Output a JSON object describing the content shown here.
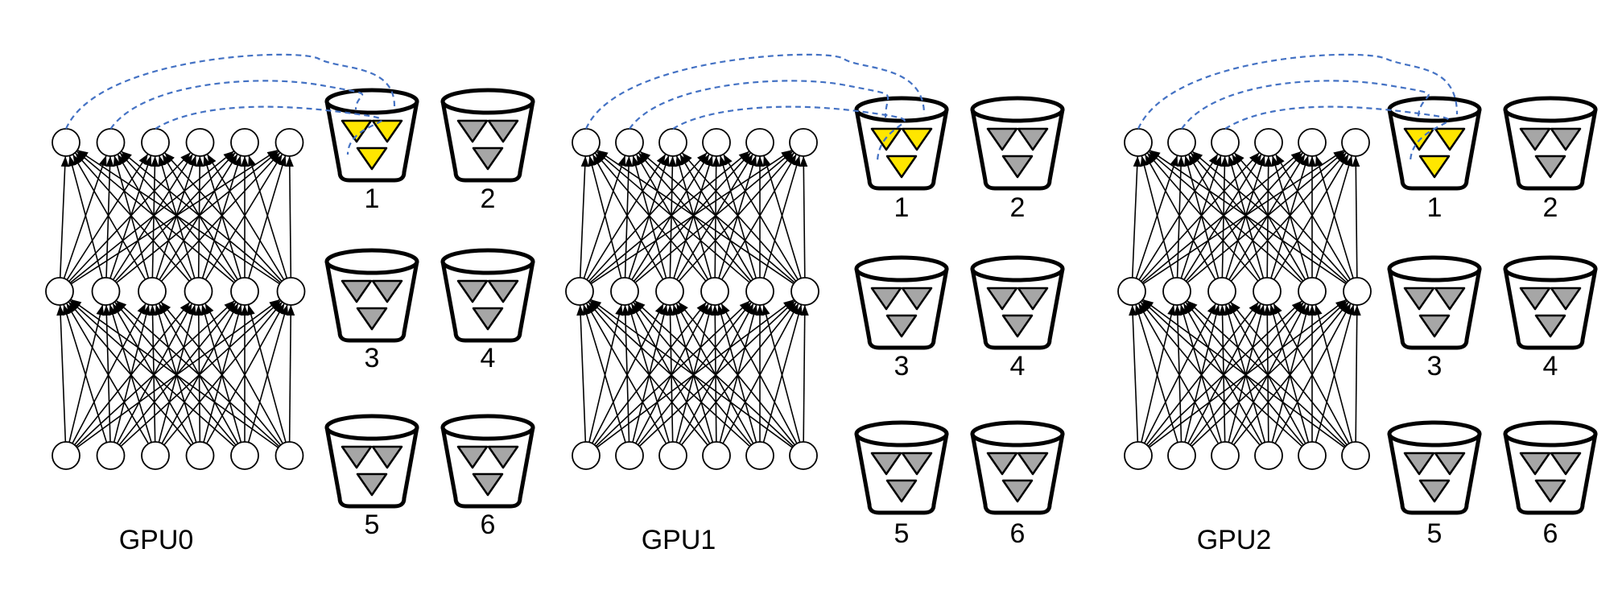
{
  "panels": [
    {
      "label": "GPU0",
      "highlighted_bucket": "1",
      "buckets": [
        {
          "label": "1",
          "highlighted": true
        },
        {
          "label": "2",
          "highlighted": false
        },
        {
          "label": "3",
          "highlighted": false
        },
        {
          "label": "4",
          "highlighted": false
        },
        {
          "label": "5",
          "highlighted": false
        },
        {
          "label": "6",
          "highlighted": false
        }
      ]
    },
    {
      "label": "GPU1",
      "highlighted_bucket": "1",
      "buckets": [
        {
          "label": "1",
          "highlighted": true
        },
        {
          "label": "2",
          "highlighted": false
        },
        {
          "label": "3",
          "highlighted": false
        },
        {
          "label": "4",
          "highlighted": false
        },
        {
          "label": "5",
          "highlighted": false
        },
        {
          "label": "6",
          "highlighted": false
        }
      ]
    },
    {
      "label": "GPU2",
      "highlighted_bucket": "1",
      "buckets": [
        {
          "label": "1",
          "highlighted": true
        },
        {
          "label": "2",
          "highlighted": false
        },
        {
          "label": "3",
          "highlighted": false
        },
        {
          "label": "4",
          "highlighted": false
        },
        {
          "label": "5",
          "highlighted": false
        },
        {
          "label": "6",
          "highlighted": false
        }
      ]
    }
  ],
  "network": {
    "layers": 3,
    "nodes_per_layer": 6,
    "connectivity": "fully-connected",
    "linked_top_nodes": 3
  },
  "colors": {
    "highlight_triangle": "#ffe600",
    "default_triangle": "#a6a6a6",
    "link_line": "#4472c4",
    "stroke": "#000000"
  }
}
